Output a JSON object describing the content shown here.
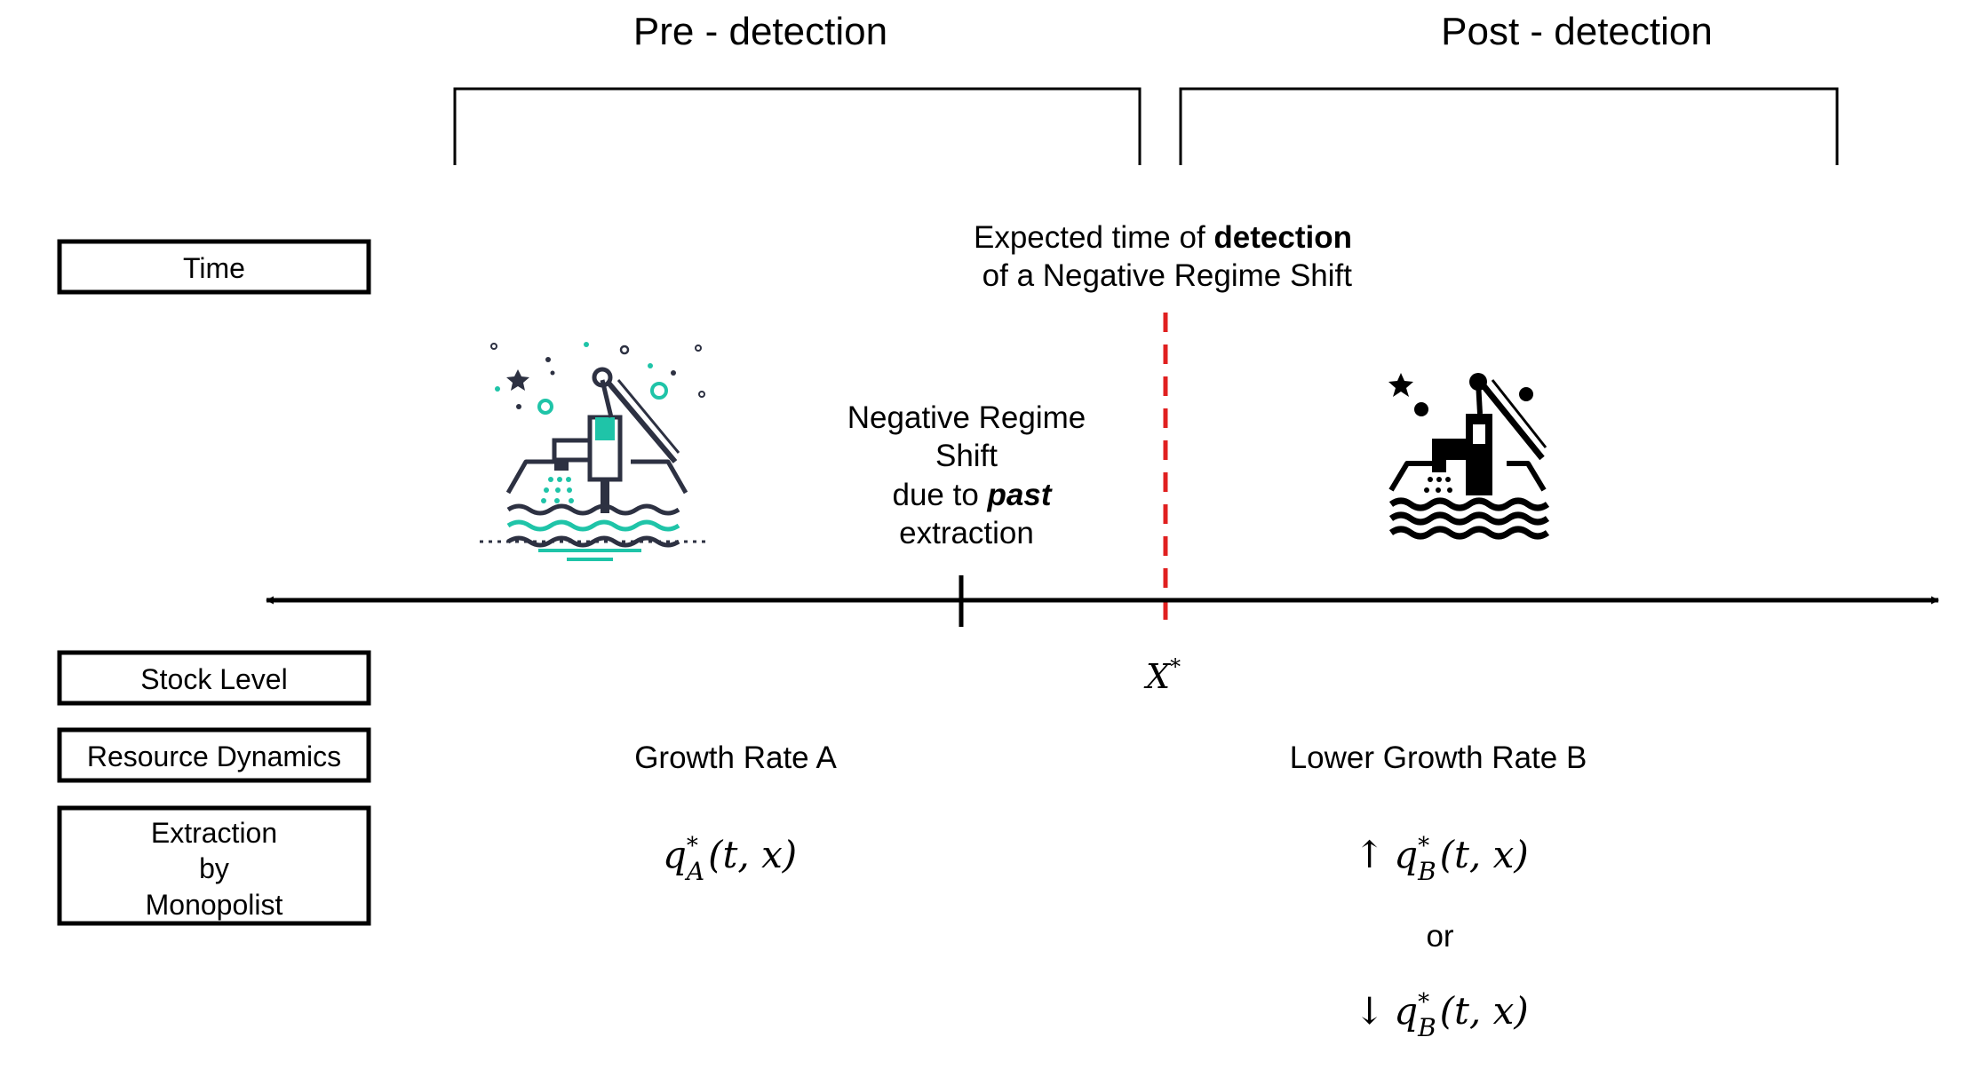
{
  "phases": {
    "pre": "Pre - detection",
    "post": "Post - detection"
  },
  "detection": {
    "line1_normal": "Expected time of ",
    "line1_bold": "detection",
    "line2": "of a Negative Regime Shift"
  },
  "regime_shift": {
    "line1": "Negative Regime",
    "line2": "Shift",
    "line3_prefix": "due to ",
    "line3_emph": "past",
    "line4": "extraction"
  },
  "threshold": {
    "symbol": "X",
    "superscript": "*"
  },
  "row_labels": {
    "time": "Time",
    "stock_level": "Stock Level",
    "resource_dynamics": "Resource Dynamics",
    "extraction": [
      "Extraction",
      "by",
      "Monopolist"
    ]
  },
  "resource_dynamics": {
    "pre": "Growth Rate A",
    "post": "Lower Growth Rate B"
  },
  "extraction": {
    "pre": {
      "q": "q",
      "sup": "*",
      "sub": "A",
      "args": "(t, x)"
    },
    "post_up": {
      "arrow": "↑",
      "q": "q",
      "sup": "*",
      "sub": "B",
      "args": "(t, x)"
    },
    "or": "or",
    "post_down": {
      "arrow": "↓",
      "q": "q",
      "sup": "*",
      "sub": "B",
      "args": "(t, x)"
    }
  },
  "icons": {
    "pre": "water-pump-outline-icon",
    "post": "water-pump-solid-icon"
  },
  "colors": {
    "line": "#000000",
    "detection_marker": "#e02020",
    "accent": "#1fc4a8",
    "icon_dark": "#2d3142"
  }
}
